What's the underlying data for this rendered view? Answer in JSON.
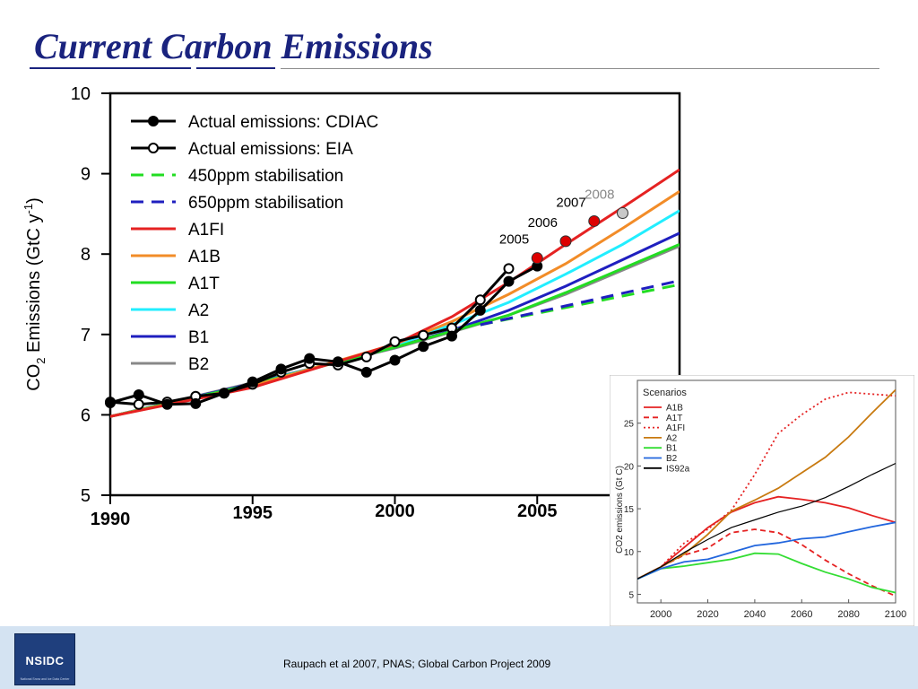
{
  "slide": {
    "title": "Current Carbon Emissions",
    "citation": "Raupach et al 2007, PNAS; Global Carbon Project 2009",
    "logo_text": "NSIDC",
    "logo_subtext": "National Snow and Ice Data Center"
  },
  "colors": {
    "title": "#1a237e",
    "footer_bg": "#d4e3f2",
    "logo_bg": "#1f3f7d"
  },
  "chart_data": [
    {
      "type": "line",
      "title": "",
      "ylabel_base": "CO",
      "ylabel_sub": "2",
      "ylabel_mid": " Emissions (GtC y",
      "ylabel_sup": "-1",
      "ylabel_end": ")",
      "xlim": [
        1990,
        2010
      ],
      "ylim": [
        5,
        10
      ],
      "xticks": [
        1990,
        1995,
        2000,
        2005
      ],
      "xtick_labels": [
        "1990",
        "1995",
        "2000",
        "2005"
      ],
      "yticks": [
        5,
        6,
        7,
        8,
        9,
        10
      ],
      "ytick_labels": [
        "5",
        "6",
        "7",
        "8",
        "9",
        "10"
      ],
      "legend_position": "top-left",
      "series": [
        {
          "name": "Actual emissions: CDIAC",
          "color": "#000000",
          "dash": "solid",
          "marker": "filled",
          "x": [
            1990,
            1991,
            1992,
            1993,
            1994,
            1995,
            1996,
            1997,
            1998,
            1999,
            2000,
            2001,
            2002,
            2003,
            2004,
            2005
          ],
          "y": [
            6.15,
            6.25,
            6.13,
            6.14,
            6.27,
            6.41,
            6.57,
            6.7,
            6.66,
            6.53,
            6.68,
            6.85,
            6.98,
            7.3,
            7.66,
            7.85
          ]
        },
        {
          "name": "Actual emissions: EIA",
          "color": "#000000",
          "dash": "solid",
          "marker": "open",
          "x": [
            1990,
            1991,
            1992,
            1993,
            1994,
            1995,
            1996,
            1997,
            1998,
            1999,
            2000,
            2001,
            2002,
            2003,
            2004
          ],
          "y": [
            6.16,
            6.13,
            6.16,
            6.23,
            6.27,
            6.38,
            6.53,
            6.64,
            6.62,
            6.72,
            6.91,
            6.99,
            7.08,
            7.43,
            7.82
          ]
        },
        {
          "name": "450ppm stabilisation",
          "color": "#22dd22",
          "dash": "dashed",
          "marker": "none",
          "x": [
            2003,
            2010
          ],
          "y": [
            7.12,
            7.62
          ]
        },
        {
          "name": "650ppm stabilisation",
          "color": "#1f1fbf",
          "dash": "dashed",
          "marker": "none",
          "x": [
            2003,
            2010
          ],
          "y": [
            7.12,
            7.67
          ]
        },
        {
          "name": "A1FI",
          "color": "#e52222",
          "dash": "solid",
          "marker": "none",
          "x": [
            1990,
            1995,
            2000,
            2002,
            2004,
            2006,
            2008,
            2010
          ],
          "y": [
            5.98,
            6.34,
            6.88,
            7.22,
            7.65,
            8.12,
            8.58,
            9.05
          ]
        },
        {
          "name": "A1B",
          "color": "#f28c28",
          "dash": "solid",
          "marker": "none",
          "x": [
            1990,
            1995,
            2000,
            2002,
            2004,
            2006,
            2008,
            2010
          ],
          "y": [
            5.98,
            6.36,
            6.88,
            7.16,
            7.5,
            7.88,
            8.32,
            8.78
          ]
        },
        {
          "name": "A1T",
          "color": "#22dd22",
          "dash": "solid",
          "marker": "none",
          "x": [
            1990,
            1995,
            2000,
            2002,
            2004,
            2006,
            2008,
            2010
          ],
          "y": [
            5.98,
            6.38,
            6.84,
            7.04,
            7.24,
            7.52,
            7.82,
            8.12
          ]
        },
        {
          "name": "A2",
          "color": "#22eeff",
          "dash": "solid",
          "marker": "none",
          "x": [
            1990,
            1995,
            2000,
            2002,
            2004,
            2006,
            2008,
            2010
          ],
          "y": [
            5.98,
            6.38,
            6.86,
            7.12,
            7.4,
            7.75,
            8.12,
            8.54
          ]
        },
        {
          "name": "B1",
          "color": "#1f1fbf",
          "dash": "solid",
          "marker": "none",
          "x": [
            1990,
            1995,
            2000,
            2002,
            2004,
            2006,
            2008,
            2010
          ],
          "y": [
            5.98,
            6.39,
            6.84,
            7.05,
            7.3,
            7.6,
            7.93,
            8.26
          ]
        },
        {
          "name": "B2",
          "color": "#888888",
          "dash": "solid",
          "marker": "none",
          "x": [
            1990,
            1995,
            2000,
            2002,
            2004,
            2006,
            2008,
            2010
          ],
          "y": [
            5.98,
            6.4,
            6.83,
            7.03,
            7.24,
            7.5,
            7.8,
            8.1
          ]
        }
      ],
      "annotations": [
        {
          "text": "2005",
          "x": 2005,
          "y": 7.95,
          "color": "#dd0000",
          "label_color": "#000000"
        },
        {
          "text": "2006",
          "x": 2006,
          "y": 8.16,
          "color": "#dd0000",
          "label_color": "#000000"
        },
        {
          "text": "2007",
          "x": 2007,
          "y": 8.41,
          "color": "#dd0000",
          "label_color": "#000000"
        },
        {
          "text": "2008",
          "x": 2008,
          "y": 8.51,
          "color": "#c8c8c8",
          "label_color": "#888888"
        }
      ]
    },
    {
      "type": "line",
      "title": "",
      "ylabel": "CO2 emissions (Gt C)",
      "legend_title": "Scenarios",
      "legend_position": "top-left",
      "xlim": [
        1990,
        2100
      ],
      "ylim": [
        4,
        30
      ],
      "xticks": [
        2000,
        2020,
        2040,
        2060,
        2080,
        2100
      ],
      "xtick_labels": [
        "2000",
        "2020",
        "2040",
        "2060",
        "2080",
        "2100"
      ],
      "yticks": [
        5,
        10,
        15,
        20,
        25
      ],
      "ytick_labels": [
        "5",
        "10",
        "15",
        "20",
        "25"
      ],
      "series": [
        {
          "name": "A1B",
          "color": "#e52222",
          "dash": "solid",
          "x": [
            1990,
            2000,
            2010,
            2020,
            2030,
            2040,
            2050,
            2060,
            2070,
            2080,
            2090,
            2100
          ],
          "y": [
            6.8,
            8.2,
            10.5,
            12.8,
            14.6,
            15.7,
            16.4,
            16.1,
            15.7,
            15.1,
            14.2,
            13.4
          ]
        },
        {
          "name": "A1T",
          "color": "#e52222",
          "dash": "dashed",
          "x": [
            1990,
            2000,
            2010,
            2020,
            2030,
            2040,
            2050,
            2060,
            2070,
            2080,
            2090,
            2100
          ],
          "y": [
            6.8,
            8.2,
            9.6,
            10.4,
            12.2,
            12.6,
            12.2,
            10.8,
            9.0,
            7.4,
            6.0,
            4.8
          ]
        },
        {
          "name": "A1FI",
          "color": "#e52222",
          "dash": "dotted",
          "x": [
            1990,
            2000,
            2010,
            2020,
            2030,
            2040,
            2050,
            2060,
            2070,
            2080,
            2090,
            2100
          ],
          "y": [
            6.8,
            8.2,
            11.0,
            12.6,
            14.8,
            19.0,
            23.8,
            26.0,
            27.8,
            28.6,
            28.4,
            28.2
          ]
        },
        {
          "name": "A2",
          "color": "#c87a10",
          "dash": "solid",
          "x": [
            1990,
            2000,
            2010,
            2020,
            2030,
            2040,
            2050,
            2060,
            2070,
            2080,
            2090,
            2100
          ],
          "y": [
            6.8,
            8.2,
            9.7,
            12.0,
            14.7,
            16.0,
            17.4,
            19.2,
            21.0,
            23.4,
            26.2,
            28.9
          ]
        },
        {
          "name": "B1",
          "color": "#33dd33",
          "dash": "solid",
          "x": [
            1990,
            2000,
            2010,
            2020,
            2030,
            2040,
            2050,
            2060,
            2070,
            2080,
            2090,
            2100
          ],
          "y": [
            6.8,
            8.0,
            8.3,
            8.7,
            9.1,
            9.8,
            9.7,
            8.6,
            7.6,
            6.8,
            5.8,
            5.2
          ]
        },
        {
          "name": "B2",
          "color": "#2266dd",
          "dash": "solid",
          "x": [
            1990,
            2000,
            2010,
            2020,
            2030,
            2040,
            2050,
            2060,
            2070,
            2080,
            2090,
            2100
          ],
          "y": [
            6.8,
            8.0,
            8.8,
            9.1,
            9.9,
            10.7,
            11.0,
            11.5,
            11.7,
            12.3,
            12.9,
            13.4
          ]
        },
        {
          "name": "IS92a",
          "color": "#000000",
          "dash": "solid",
          "x": [
            1990,
            2000,
            2010,
            2020,
            2030,
            2040,
            2050,
            2060,
            2070,
            2080,
            2090,
            2100
          ],
          "y": [
            6.8,
            8.2,
            9.9,
            11.4,
            12.8,
            13.7,
            14.6,
            15.3,
            16.3,
            17.6,
            19.0,
            20.3
          ]
        }
      ]
    }
  ]
}
